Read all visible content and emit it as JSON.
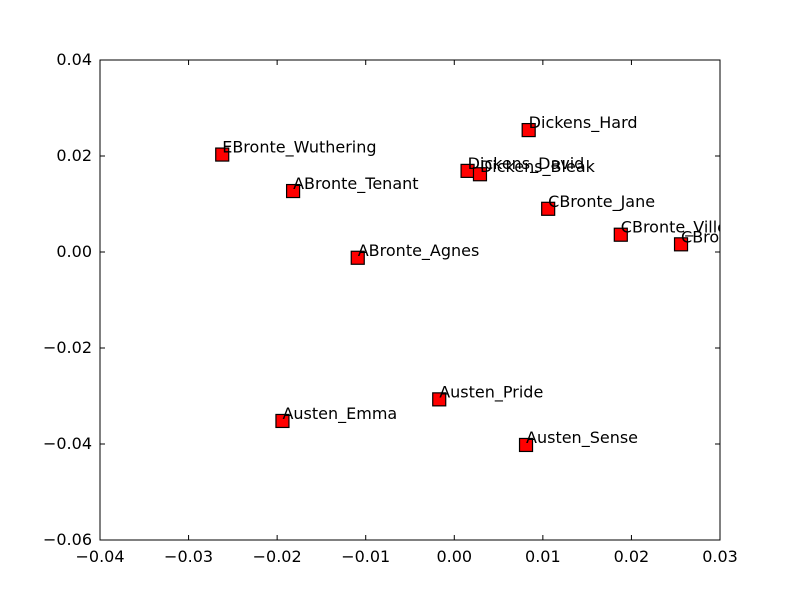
{
  "chart_data": {
    "type": "scatter",
    "title": "",
    "xlabel": "",
    "ylabel": "",
    "xlim": [
      -0.04,
      0.03
    ],
    "ylim": [
      -0.06,
      0.04
    ],
    "grid": false,
    "marker": "square",
    "marker_color": "#ff0000",
    "marker_edge_color": "#000000",
    "xticks": [
      "−0.04",
      "−0.03",
      "−0.02",
      "−0.01",
      "0.00",
      "0.01",
      "0.02",
      "0.03"
    ],
    "xtick_values": [
      -0.04,
      -0.03,
      -0.02,
      -0.01,
      0.0,
      0.01,
      0.02,
      0.03
    ],
    "yticks": [
      "0.04",
      "0.02",
      "0.00",
      "−0.02",
      "−0.04",
      "−0.06"
    ],
    "ytick_values": [
      0.04,
      0.02,
      0.0,
      -0.02,
      -0.04,
      -0.06
    ],
    "points": [
      {
        "label": "EBronte_Wuthering",
        "x": -0.0262,
        "y": 0.0203
      },
      {
        "label": "ABronte_Tenant",
        "x": -0.0182,
        "y": 0.0127
      },
      {
        "label": "ABronte_Agnes",
        "x": -0.0109,
        "y": -0.0012
      },
      {
        "label": "Dickens_Hard",
        "x": 0.0084,
        "y": 0.0254
      },
      {
        "label": "Dickens_David",
        "x": 0.0015,
        "y": 0.0169
      },
      {
        "label": "Dickens_Bleak",
        "x": 0.0029,
        "y": 0.0162
      },
      {
        "label": "CBronte_Jane",
        "x": 0.0106,
        "y": 0.009
      },
      {
        "label": "CBronte_Villette",
        "x": 0.0188,
        "y": 0.0036
      },
      {
        "label": "CBronte_Professor",
        "x": 0.0256,
        "y": 0.0016
      },
      {
        "label": "Austen_Pride",
        "x": -0.0017,
        "y": -0.0307
      },
      {
        "label": "Austen_Emma",
        "x": -0.0194,
        "y": -0.0352
      },
      {
        "label": "Austen_Sense",
        "x": 0.0081,
        "y": -0.0402
      }
    ]
  }
}
